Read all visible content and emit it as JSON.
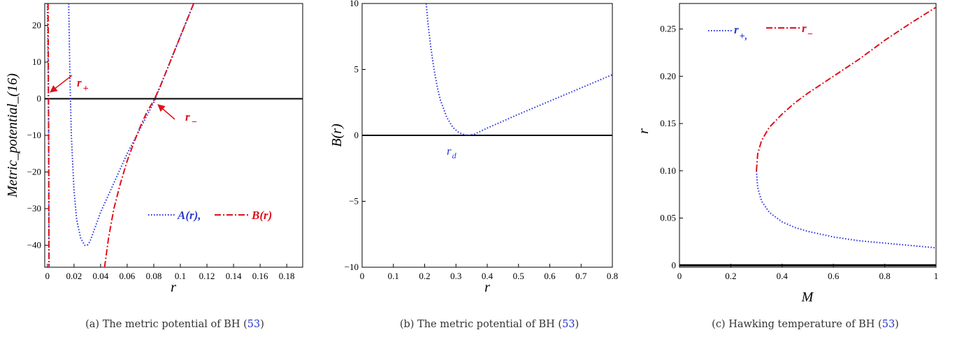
{
  "colors": {
    "blue": "#1f2fe0",
    "red": "#e0101a",
    "axis": "#000000",
    "ann_red": "#e0101a",
    "ann_blue": "#2a3ccf"
  },
  "captions": [
    {
      "prefix": "(a) The metric potential of BH (",
      "ref": "53",
      "suffix": ")"
    },
    {
      "prefix": "(b) The metric potential of BH (",
      "ref": "53",
      "suffix": ")"
    },
    {
      "prefix": "(c) Hawking temperature of BH (",
      "ref": "53",
      "suffix": ")"
    }
  ],
  "chart_data": [
    {
      "type": "line",
      "xlabel": "r",
      "ylabel": "Metric_potential_(16)",
      "xlim": [
        -0.002,
        0.192
      ],
      "ylim": [
        -46,
        26
      ],
      "xticks": [
        0,
        0.02,
        0.04,
        0.06,
        0.08,
        0.1,
        0.12,
        0.14,
        0.16,
        0.18
      ],
      "xtick_labels": [
        "0",
        "0.02",
        "0.04",
        "0.06",
        "0.08",
        "0.1",
        "0.12",
        "0.14",
        "0.16",
        "0.18"
      ],
      "yticks": [
        -40,
        -30,
        -20,
        -10,
        0,
        10,
        20
      ],
      "ytick_labels": [
        "−40",
        "−30",
        "−20",
        "−10",
        "0",
        "10",
        "20"
      ],
      "legend": {
        "placement": "bottom-right",
        "labels": [
          "A(r),",
          "B(r)"
        ]
      },
      "annotations": [
        {
          "text": "r",
          "sub": "+",
          "target": [
            0,
            0
          ]
        },
        {
          "text": "r",
          "sub": "−",
          "target": [
            0.082,
            0
          ]
        }
      ],
      "series": [
        {
          "name": "A(r)",
          "style": "dotted",
          "color": "blue",
          "x": [
            0.0,
            0.0005,
            0.001,
            0.0012,
            0.0,
            0.016,
            0.0163,
            0.017,
            0.018,
            0.02,
            0.022,
            0.025,
            0.028,
            0.03,
            0.032,
            0.035,
            0.04,
            0.05,
            0.06,
            0.07,
            0.08,
            0.09,
            0.1,
            0.11
          ],
          "y": [
            26,
            10,
            -10,
            -46,
            null,
            26,
            20,
            5,
            -10,
            -25,
            -33,
            -38,
            -40,
            -40,
            -39,
            -36,
            -31,
            -23,
            -15,
            -8,
            -1,
            8,
            17,
            26
          ]
        },
        {
          "name": "B(r)",
          "style": "dash-dot",
          "color": "red",
          "x": [
            0.0005,
            0.0008,
            0.001,
            0.0012,
            0.0,
            0.043,
            0.046,
            0.05,
            0.055,
            0.06,
            0.065,
            0.07,
            0.075,
            0.08,
            0.085,
            0.09,
            0.095,
            0.1,
            0.105,
            0.11
          ],
          "y": [
            26,
            0,
            -20,
            -46,
            null,
            -46,
            -38,
            -30,
            -23,
            -17,
            -12,
            -7.5,
            -3.5,
            -0.5,
            3.5,
            8,
            12.5,
            17,
            21.5,
            26
          ]
        }
      ]
    },
    {
      "type": "line",
      "xlabel": "r",
      "ylabel": "B(r)",
      "xlim": [
        0,
        0.8
      ],
      "ylim": [
        -10,
        10
      ],
      "xticks": [
        0,
        0.1,
        0.2,
        0.3,
        0.4,
        0.5,
        0.6,
        0.7,
        0.8
      ],
      "xtick_labels": [
        "0",
        "0.1",
        "0.2",
        "0.3",
        "0.4",
        "0.5",
        "0.6",
        "0.7",
        "0.8"
      ],
      "yticks": [
        -10,
        -5,
        0,
        5,
        10
      ],
      "ytick_labels": [
        "−10",
        "−5",
        "0",
        "5",
        "10"
      ],
      "annotations": [
        {
          "text": "r",
          "sub": "d",
          "target": [
            0.34,
            0
          ]
        }
      ],
      "series": [
        {
          "name": "B(r)",
          "style": "dotted",
          "color": "blue",
          "x": [
            0.205,
            0.21,
            0.22,
            0.23,
            0.24,
            0.25,
            0.27,
            0.29,
            0.31,
            0.33,
            0.34,
            0.36,
            0.4,
            0.5,
            0.6,
            0.7,
            0.8
          ],
          "y": [
            10,
            8.6,
            6.6,
            5.0,
            3.7,
            2.7,
            1.4,
            0.6,
            0.2,
            0.02,
            0.0,
            0.1,
            0.55,
            1.6,
            2.6,
            3.6,
            4.6
          ]
        }
      ]
    },
    {
      "type": "line",
      "xlabel": "M",
      "ylabel": "r",
      "xlim": [
        0,
        1
      ],
      "ylim": [
        -0.002,
        0.277
      ],
      "xticks": [
        0,
        0.2,
        0.4,
        0.6,
        0.8,
        1
      ],
      "xtick_labels": [
        "0",
        "0.2",
        "0.4",
        "0.6",
        "0.8",
        "1"
      ],
      "yticks": [
        0,
        0.05,
        0.1,
        0.15,
        0.2,
        0.25
      ],
      "ytick_labels": [
        "0",
        "0.05",
        "0.10",
        "0.15",
        "0.20",
        "0.25"
      ],
      "legend": {
        "placement": "top-left",
        "labels": [
          "r",
          "r"
        ],
        "subs": [
          "+,",
          "−"
        ]
      },
      "series": [
        {
          "name": "r+",
          "style": "dotted",
          "color": "blue",
          "x": [
            0.3,
            0.305,
            0.32,
            0.35,
            0.4,
            0.45,
            0.5,
            0.6,
            0.7,
            0.8,
            0.9,
            1.0
          ],
          "y": [
            0.1,
            0.082,
            0.068,
            0.056,
            0.046,
            0.04,
            0.036,
            0.03,
            0.026,
            0.0235,
            0.021,
            0.0185
          ]
        },
        {
          "name": "r−",
          "style": "dash-dot",
          "color": "red",
          "x": [
            0.3,
            0.305,
            0.32,
            0.35,
            0.4,
            0.45,
            0.5,
            0.6,
            0.7,
            0.8,
            0.9,
            1.0
          ],
          "y": [
            0.1,
            0.118,
            0.132,
            0.146,
            0.16,
            0.172,
            0.182,
            0.2,
            0.218,
            0.238,
            0.256,
            0.273
          ]
        }
      ]
    }
  ]
}
